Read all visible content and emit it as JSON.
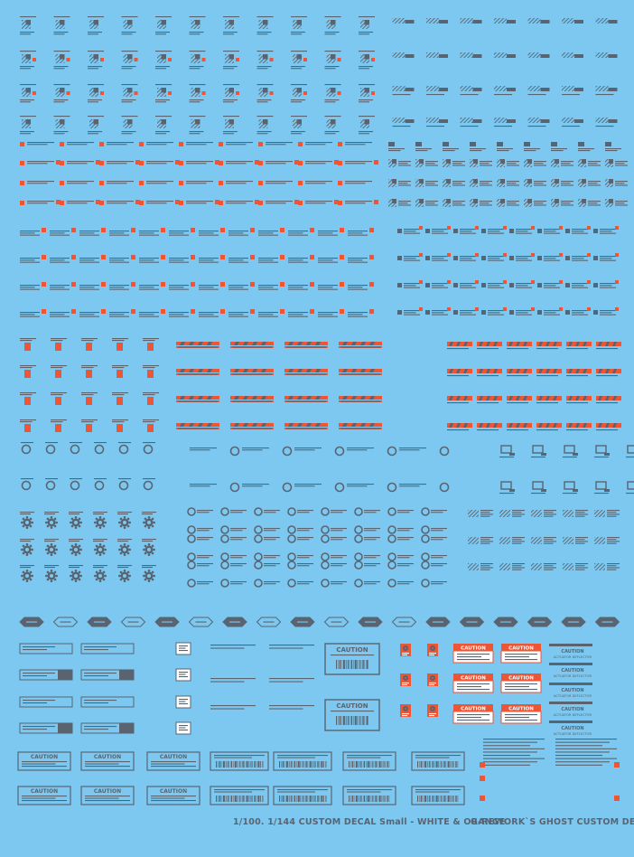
{
  "sheet": {
    "footer_left": "1/100. 1/144 CUSTOM DECAL Small - WHITE & ORANGE",
    "footer_right": "G-REWORK`S GHOST CUSTOM DECAL"
  },
  "labels": {
    "caution": "CAUTION",
    "actuator": "ACTUATOR DEFLECTOR"
  },
  "colors": {
    "background": "#7cc8f0",
    "decal_gray": "#5a6470",
    "orange": "#ee5535",
    "white": "#ffffff"
  },
  "icons": [
    "hatched-square-icon",
    "orange-square-icon",
    "circle-ring-icon",
    "gear-icon",
    "arrow-tag-icon",
    "barcode-icon",
    "radiation-icon",
    "monitor-icon"
  ]
}
